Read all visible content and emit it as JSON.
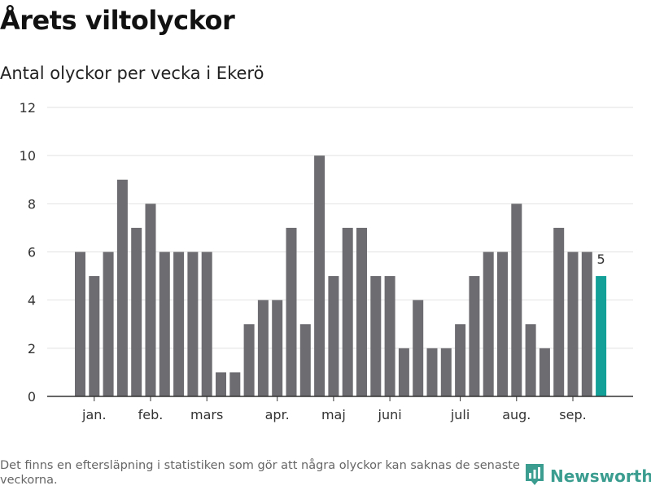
{
  "title": "Årets viltolyckor",
  "subtitle": "Antal olyckor per vecka i Ekerö",
  "footnote": "Det finns en eftersläpning i statistiken som gör att några olyckor kan saknas de senaste veckorna.",
  "brand": {
    "name": "Newsworthy",
    "icon": "newsworthy-logo-icon"
  },
  "colors": {
    "bar": "#6d6c70",
    "highlight": "#13a098",
    "grid": "#e2e2e2",
    "axis": "#333333",
    "brand": "#3a9d8f"
  },
  "chart_data": {
    "type": "bar",
    "title": "Antal olyckor per vecka i Ekerö",
    "xlabel": "",
    "ylabel": "",
    "ylim": [
      0,
      12
    ],
    "yticks": [
      0,
      2,
      4,
      6,
      8,
      10,
      12
    ],
    "grid": true,
    "values": [
      6,
      5,
      6,
      9,
      7,
      8,
      6,
      6,
      6,
      6,
      1,
      1,
      3,
      4,
      4,
      7,
      3,
      10,
      5,
      7,
      7,
      5,
      5,
      2,
      4,
      2,
      2,
      3,
      5,
      6,
      6,
      8,
      3,
      2,
      7,
      6,
      6,
      5
    ],
    "highlight_index": 37,
    "highlight_label": "5",
    "month_labels": [
      {
        "label": "jan.",
        "at_week": 1
      },
      {
        "label": "feb.",
        "at_week": 5
      },
      {
        "label": "mars",
        "at_week": 9
      },
      {
        "label": "apr.",
        "at_week": 14
      },
      {
        "label": "maj",
        "at_week": 18
      },
      {
        "label": "juni",
        "at_week": 22
      },
      {
        "label": "juli",
        "at_week": 27
      },
      {
        "label": "aug.",
        "at_week": 31
      },
      {
        "label": "sep.",
        "at_week": 35
      }
    ]
  }
}
